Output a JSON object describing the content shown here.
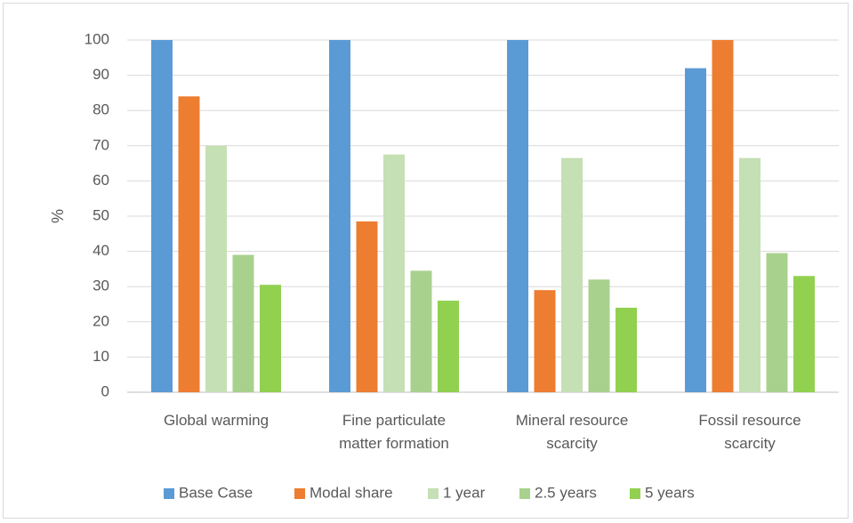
{
  "chart_data": {
    "type": "bar",
    "ylabel": "%",
    "ylim": [
      0,
      100
    ],
    "yticks": [
      "0",
      "10",
      "20",
      "30",
      "40",
      "50",
      "60",
      "70",
      "80",
      "90",
      "100"
    ],
    "grid": true,
    "legend_position": "bottom",
    "categories": [
      [
        "Global warming"
      ],
      [
        "Fine particulate",
        "matter formation"
      ],
      [
        "Mineral resource",
        "scarcity"
      ],
      [
        "Fossil resource",
        "scarcity"
      ]
    ],
    "series": [
      {
        "name": "Base Case",
        "color": "#5b9bd5",
        "values": [
          100,
          100,
          100,
          92
        ]
      },
      {
        "name": "Modal share",
        "color": "#ed7d31",
        "values": [
          84,
          48.5,
          29,
          100
        ]
      },
      {
        "name": "1 year",
        "color": "#c5e0b4",
        "values": [
          70,
          67.5,
          66.5,
          66.5
        ]
      },
      {
        "name": "2.5 years",
        "color": "#a9d18e",
        "values": [
          39,
          34.5,
          32,
          39.5
        ]
      },
      {
        "name": "5 years",
        "color": "#92d050",
        "values": [
          30.5,
          26,
          24,
          33
        ]
      }
    ]
  }
}
